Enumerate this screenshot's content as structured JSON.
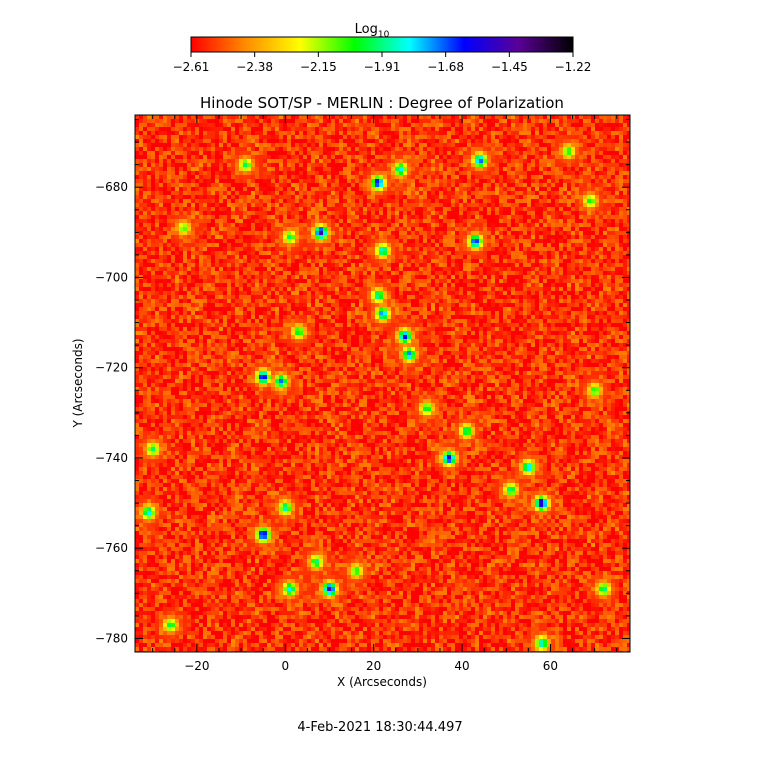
{
  "chart_data": {
    "type": "heatmap",
    "title": "Hinode SOT/SP - MERLIN : Degree of Polarization",
    "xlabel": "X (Arcseconds)",
    "ylabel": "Y (Arcseconds)",
    "xlim": [
      -34,
      78
    ],
    "ylim": [
      -783,
      -664
    ],
    "x_ticks": [
      -20,
      0,
      20,
      40,
      60
    ],
    "y_ticks": [
      -680,
      -700,
      -720,
      -740,
      -760,
      -780
    ],
    "x_tick_labels": [
      "−20",
      "0",
      "20",
      "40",
      "60"
    ],
    "y_tick_labels": [
      "−680",
      "−700",
      "−720",
      "−740",
      "−760",
      "−780"
    ],
    "colorbar": {
      "label_base": "Log",
      "label_sub": "10",
      "range": [
        -2.61,
        -1.22
      ],
      "tick_labels": [
        "−2.61",
        "−2.38",
        "−2.15",
        "−1.91",
        "−1.68",
        "−1.45",
        "−1.22"
      ],
      "colormap": [
        "#ff0000",
        "#ff8c00",
        "#ffff00",
        "#00ff00",
        "#00ffff",
        "#0000ff",
        "#5a0096",
        "#000000"
      ]
    },
    "background_level": -2.55,
    "features": [
      {
        "x": -23,
        "y": -689,
        "level": -2.05
      },
      {
        "x": 1,
        "y": -691,
        "level": -1.95
      },
      {
        "x": 8,
        "y": -690,
        "level": -1.45
      },
      {
        "x": 21,
        "y": -679,
        "level": -1.55
      },
      {
        "x": 26,
        "y": -676,
        "level": -1.8
      },
      {
        "x": 22,
        "y": -694,
        "level": -1.8
      },
      {
        "x": 21,
        "y": -704,
        "level": -1.85
      },
      {
        "x": 22,
        "y": -708,
        "level": -1.7
      },
      {
        "x": 27,
        "y": -713,
        "level": -1.6
      },
      {
        "x": 28,
        "y": -717,
        "level": -1.7
      },
      {
        "x": 3,
        "y": -712,
        "level": -1.95
      },
      {
        "x": -5,
        "y": -722,
        "level": -1.55
      },
      {
        "x": -1,
        "y": -723,
        "level": -1.7
      },
      {
        "x": 43,
        "y": -692,
        "level": -1.6
      },
      {
        "x": 44,
        "y": -674,
        "level": -1.65
      },
      {
        "x": 37,
        "y": -740,
        "level": -1.5
      },
      {
        "x": 41,
        "y": -734,
        "level": -1.9
      },
      {
        "x": 55,
        "y": -742,
        "level": -1.75
      },
      {
        "x": 58,
        "y": -750,
        "level": -1.45
      },
      {
        "x": 51,
        "y": -747,
        "level": -1.9
      },
      {
        "x": -5,
        "y": -757,
        "level": -1.5
      },
      {
        "x": 0,
        "y": -751,
        "level": -1.85
      },
      {
        "x": 1,
        "y": -769,
        "level": -1.8
      },
      {
        "x": 10,
        "y": -769,
        "level": -1.45
      },
      {
        "x": 7,
        "y": -763,
        "level": -1.9
      },
      {
        "x": -31,
        "y": -752,
        "level": -1.8
      },
      {
        "x": -30,
        "y": -738,
        "level": -1.95
      },
      {
        "x": 58,
        "y": -781,
        "level": -1.8
      },
      {
        "x": -26,
        "y": -777,
        "level": -1.95
      },
      {
        "x": 72,
        "y": -769,
        "level": -1.9
      },
      {
        "x": -9,
        "y": -675,
        "level": -1.95
      },
      {
        "x": 64,
        "y": -672,
        "level": -2.0
      },
      {
        "x": 69,
        "y": -683,
        "level": -2.0
      },
      {
        "x": 32,
        "y": -729,
        "level": -1.95
      },
      {
        "x": 16,
        "y": -765,
        "level": -2.0
      },
      {
        "x": 70,
        "y": -725,
        "level": -2.0
      }
    ]
  },
  "timestamp": "4-Feb-2021 18:30:44.497"
}
